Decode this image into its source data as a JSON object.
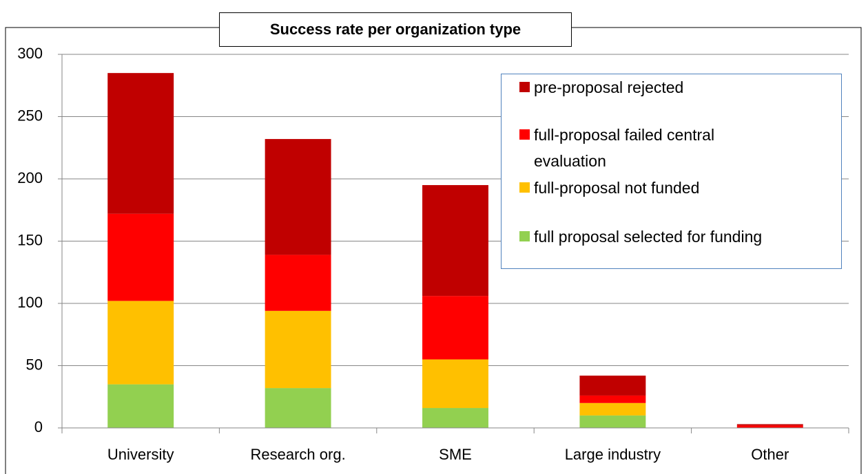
{
  "chart_data": {
    "type": "stacked_bar",
    "title": "Success rate per organization type",
    "categories": [
      "University",
      "Research org.",
      "SME",
      "Large industry",
      "Other"
    ],
    "series": [
      {
        "name": "full proposal selected for funding",
        "color": "#92d050",
        "values": [
          35,
          32,
          16,
          10,
          0
        ]
      },
      {
        "name": "full-proposal not funded",
        "color": "#ffc000",
        "values": [
          67,
          62,
          39,
          10,
          0
        ]
      },
      {
        "name": "full-proposal failed central evaluation",
        "color": "#ff0000",
        "values": [
          70,
          45,
          51,
          6,
          2
        ]
      },
      {
        "name": "pre-proposal rejected",
        "color": "#c00000",
        "values": [
          113,
          93,
          89,
          16,
          1
        ]
      }
    ],
    "ylim": [
      0,
      300
    ],
    "yticks": [
      0,
      50,
      100,
      150,
      200,
      250,
      300
    ],
    "grid": true,
    "legend": "upper right"
  }
}
